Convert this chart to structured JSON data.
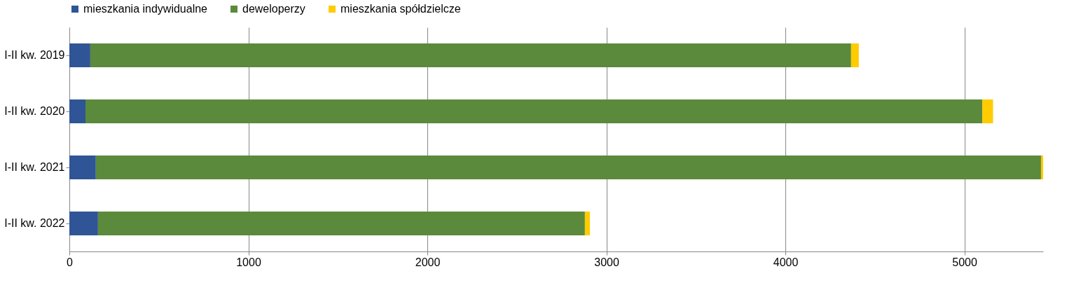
{
  "chart_data": {
    "type": "bar",
    "orientation": "horizontal",
    "stacked": true,
    "categories": [
      "I-II kw. 2019",
      "I-II kw. 2020",
      "I-II kw. 2021",
      "I-II kw. 2022"
    ],
    "series": [
      {
        "name": "mieszkania indywidualne",
        "color": "#2f5597",
        "values": [
          117,
          90,
          148,
          160
        ]
      },
      {
        "name": "deweloperzy",
        "color": "#5b8a3c",
        "values": [
          4250,
          5010,
          5280,
          2720
        ]
      },
      {
        "name": "mieszkania spółdzielcze",
        "color": "#ffcc00",
        "values": [
          43,
          60,
          12,
          28
        ]
      }
    ],
    "xlim": [
      0,
      5440
    ],
    "xticks": [
      0,
      1000,
      2000,
      3000,
      4000,
      5000
    ],
    "grid": "x",
    "legend": "top"
  }
}
